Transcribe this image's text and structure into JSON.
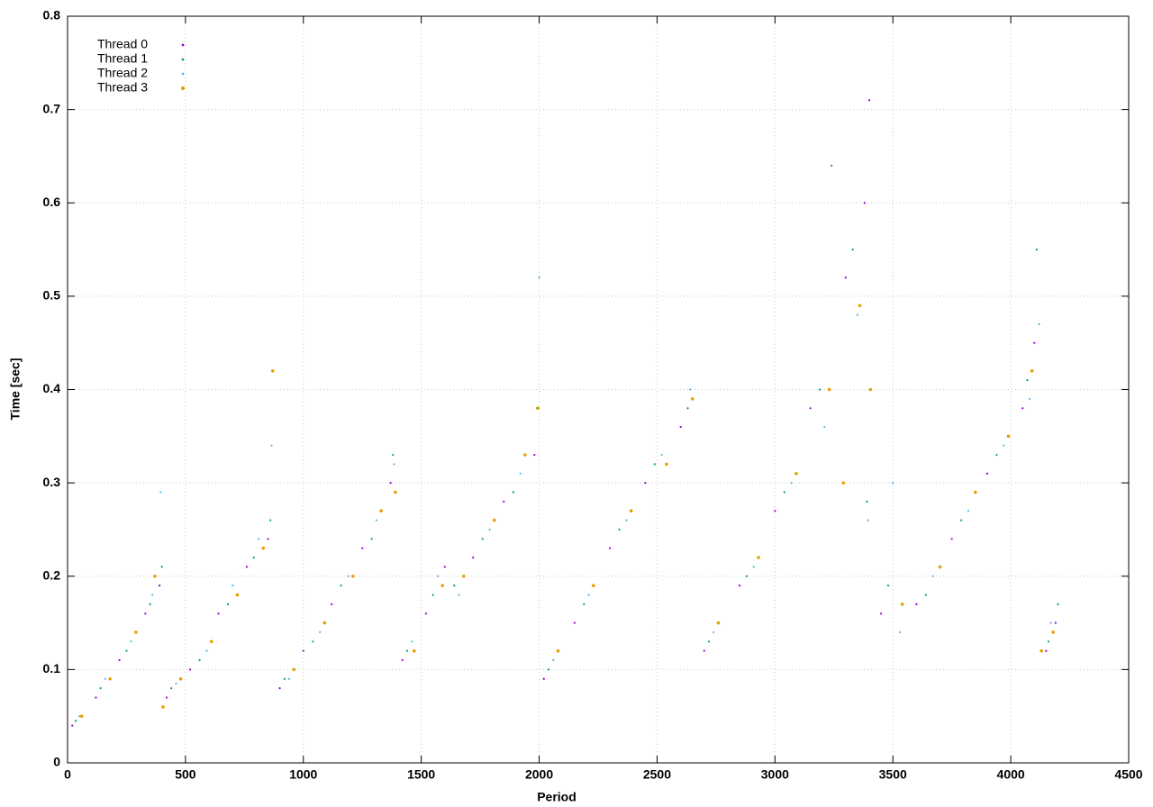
{
  "chart_data": {
    "type": "scatter",
    "xlabel": "Period",
    "ylabel": "Time [sec]",
    "xlim": [
      0,
      4500
    ],
    "xticks": [
      0,
      500,
      1000,
      1500,
      2000,
      2500,
      3000,
      3500,
      4000,
      4500
    ],
    "ylim": [
      0,
      0.8
    ],
    "yticks": [
      0,
      0.1,
      0.2,
      0.3,
      0.4,
      0.5,
      0.6,
      0.7,
      0.8
    ],
    "grid": true,
    "legend": "upper-left",
    "series": [
      {
        "name": "Thread 0",
        "color": "#9400d3",
        "x": [
          20,
          120,
          220,
          330,
          390,
          420,
          520,
          640,
          760,
          850,
          900,
          1000,
          1120,
          1250,
          1370,
          1420,
          1520,
          1600,
          1720,
          1850,
          1980,
          2020,
          2150,
          2300,
          2450,
          2600,
          2700,
          2850,
          3000,
          3150,
          3300,
          3380,
          3400,
          3450,
          3600,
          3750,
          3900,
          4050,
          4100,
          4150,
          4190
        ],
        "values": [
          0.04,
          0.07,
          0.11,
          0.16,
          0.19,
          0.07,
          0.1,
          0.16,
          0.21,
          0.24,
          0.08,
          0.12,
          0.17,
          0.23,
          0.3,
          0.11,
          0.16,
          0.21,
          0.22,
          0.28,
          0.33,
          0.09,
          0.15,
          0.23,
          0.3,
          0.36,
          0.12,
          0.19,
          0.27,
          0.38,
          0.52,
          0.6,
          0.71,
          0.16,
          0.17,
          0.24,
          0.31,
          0.38,
          0.45,
          0.12,
          0.15
        ]
      },
      {
        "name": "Thread 1",
        "color": "#009e73",
        "x": [
          35,
          140,
          250,
          350,
          400,
          440,
          560,
          680,
          790,
          860,
          920,
          1040,
          1160,
          1290,
          1380,
          1440,
          1550,
          1640,
          1760,
          1890,
          1990,
          2040,
          2190,
          2340,
          2490,
          2630,
          2720,
          2880,
          3040,
          3190,
          3240,
          3330,
          3390,
          3480,
          3640,
          3790,
          3940,
          4070,
          4110,
          4160,
          4200
        ],
        "values": [
          0.045,
          0.08,
          0.12,
          0.17,
          0.21,
          0.08,
          0.11,
          0.17,
          0.22,
          0.26,
          0.09,
          0.13,
          0.19,
          0.24,
          0.33,
          0.12,
          0.18,
          0.19,
          0.24,
          0.29,
          0.38,
          0.1,
          0.17,
          0.25,
          0.32,
          0.38,
          0.13,
          0.2,
          0.29,
          0.4,
          0.64,
          0.55,
          0.28,
          0.19,
          0.18,
          0.26,
          0.33,
          0.41,
          0.55,
          0.13,
          0.17
        ]
      },
      {
        "name": "Thread 2",
        "color": "#56b4e9",
        "x": [
          50,
          160,
          270,
          360,
          395,
          460,
          590,
          700,
          810,
          865,
          940,
          1070,
          1190,
          1310,
          1385,
          1460,
          1570,
          1660,
          1790,
          1920,
          2000,
          2060,
          2210,
          2370,
          2520,
          2640,
          2740,
          2910,
          3070,
          3210,
          3350,
          3395,
          3500,
          3530,
          3670,
          3820,
          3970,
          4080,
          4120,
          4170
        ],
        "values": [
          0.05,
          0.09,
          0.13,
          0.18,
          0.29,
          0.085,
          0.12,
          0.19,
          0.24,
          0.34,
          0.09,
          0.14,
          0.2,
          0.26,
          0.32,
          0.13,
          0.2,
          0.18,
          0.25,
          0.31,
          0.52,
          0.11,
          0.18,
          0.26,
          0.33,
          0.4,
          0.14,
          0.21,
          0.3,
          0.36,
          0.48,
          0.26,
          0.3,
          0.14,
          0.2,
          0.27,
          0.34,
          0.39,
          0.47,
          0.15
        ]
      },
      {
        "name": "Thread 3",
        "color": "#e69f00",
        "x": [
          60,
          180,
          290,
          370,
          405,
          480,
          610,
          720,
          830,
          870,
          960,
          1090,
          1210,
          1330,
          1390,
          1470,
          1590,
          1680,
          1810,
          1940,
          1995,
          2080,
          2230,
          2390,
          2540,
          2650,
          2760,
          2930,
          3090,
          3230,
          3290,
          3360,
          3405,
          3540,
          3700,
          3850,
          3990,
          4090,
          4130,
          4180
        ],
        "values": [
          0.05,
          0.09,
          0.14,
          0.2,
          0.06,
          0.09,
          0.13,
          0.18,
          0.23,
          0.42,
          0.1,
          0.15,
          0.2,
          0.27,
          0.29,
          0.12,
          0.19,
          0.2,
          0.26,
          0.33,
          0.38,
          0.12,
          0.19,
          0.27,
          0.32,
          0.39,
          0.15,
          0.22,
          0.31,
          0.4,
          0.3,
          0.49,
          0.4,
          0.17,
          0.21,
          0.29,
          0.35,
          0.42,
          0.12,
          0.14
        ]
      }
    ]
  }
}
